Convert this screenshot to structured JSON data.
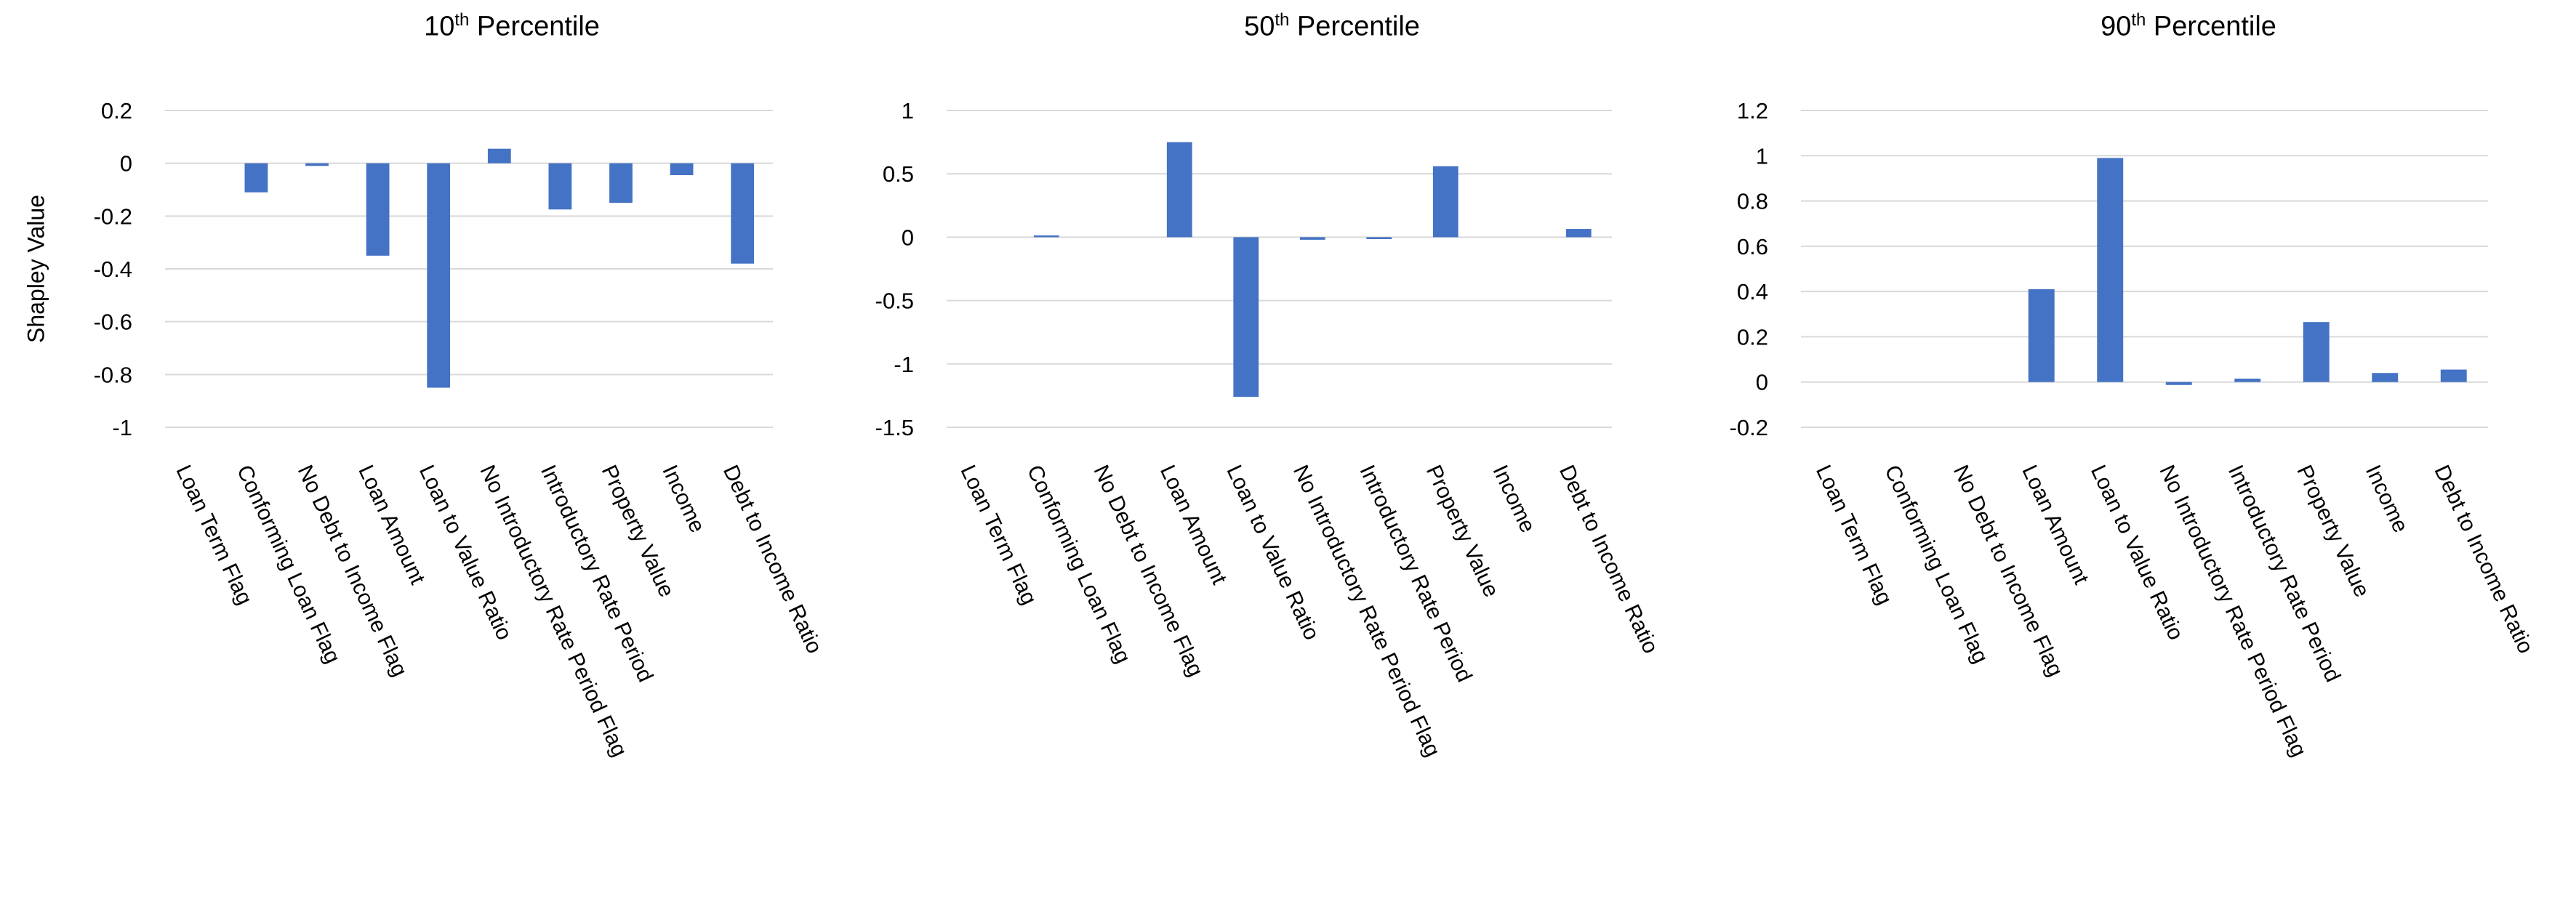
{
  "figure": {
    "background": "#ffffff",
    "ylabel": "Shapley Value",
    "colors": {
      "bar": "#4472C4",
      "gridline": "#D9D9D9",
      "text": "#000000"
    },
    "legend": "none"
  },
  "chart_data": [
    {
      "type": "bar",
      "title": "10th Percentile",
      "title_num": "10",
      "title_sup": "th",
      "title_rest": " Percentile",
      "ylabel": "Shapley Value",
      "grid": true,
      "ylim": [
        -1,
        0.2
      ],
      "yticks": [
        {
          "v": 0.2,
          "label": "0.2"
        },
        {
          "v": 0,
          "label": "0"
        },
        {
          "v": -0.2,
          "label": "-0.2"
        },
        {
          "v": -0.4,
          "label": "-0.4"
        },
        {
          "v": -0.6,
          "label": "-0.6"
        },
        {
          "v": -0.8,
          "label": "-0.8"
        },
        {
          "v": -1,
          "label": "-1"
        }
      ],
      "categories": [
        "Loan Term Flag",
        "Conforming Loan Flag",
        "No Debt to Income Flag",
        "Loan Amount",
        "Loan to Value Ratio",
        "No Introductory Rate Period Flag",
        "Introductory Rate Period",
        "Property Value",
        "Income",
        "Debt to Income Ratio"
      ],
      "values": [
        0,
        -0.11,
        -0.01,
        -0.35,
        -0.85,
        0.055,
        -0.175,
        -0.15,
        -0.045,
        -0.38
      ]
    },
    {
      "type": "bar",
      "title": "50th Percentile",
      "title_num": "50",
      "title_sup": "th",
      "title_rest": " Percentile",
      "ylabel": "",
      "grid": true,
      "ylim": [
        -1.5,
        1
      ],
      "yticks": [
        {
          "v": 1,
          "label": "1"
        },
        {
          "v": 0.5,
          "label": "0.5"
        },
        {
          "v": 0,
          "label": "0"
        },
        {
          "v": -0.5,
          "label": "-0.5"
        },
        {
          "v": -1,
          "label": "-1"
        },
        {
          "v": -1.5,
          "label": "-1.5"
        }
      ],
      "categories": [
        "Loan Term Flag",
        "Conforming Loan Flag",
        "No Debt to Income Flag",
        "Loan Amount",
        "Loan to Value Ratio",
        "No Introductory Rate Period Flag",
        "Introductory Rate Period",
        "Property Value",
        "Income",
        "Debt to Income Ratio"
      ],
      "values": [
        0,
        0.013,
        0,
        0.75,
        -1.26,
        -0.02,
        -0.015,
        0.56,
        0,
        0.065
      ]
    },
    {
      "type": "bar",
      "title": "90th Percentile",
      "title_num": "90",
      "title_sup": "th",
      "title_rest": " Percentile",
      "ylabel": "",
      "grid": true,
      "ylim": [
        -0.2,
        1.2
      ],
      "yticks": [
        {
          "v": 1.2,
          "label": "1.2"
        },
        {
          "v": 1,
          "label": "1"
        },
        {
          "v": 0.8,
          "label": "0.8"
        },
        {
          "v": 0.6,
          "label": "0.6"
        },
        {
          "v": 0.4,
          "label": "0.4"
        },
        {
          "v": 0.2,
          "label": "0.2"
        },
        {
          "v": 0,
          "label": "0"
        },
        {
          "v": -0.2,
          "label": "-0.2"
        }
      ],
      "categories": [
        "Loan Term Flag",
        "Conforming Loan Flag",
        "No Debt to Income Flag",
        "Loan Amount",
        "Loan to Value Ratio",
        "No Introductory Rate Period Flag",
        "Introductory Rate Period",
        "Property Value",
        "Income",
        "Debt to Income Ratio"
      ],
      "values": [
        0,
        0,
        0,
        0.41,
        0.99,
        -0.013,
        0.015,
        0.265,
        0.04,
        0.055
      ]
    }
  ]
}
